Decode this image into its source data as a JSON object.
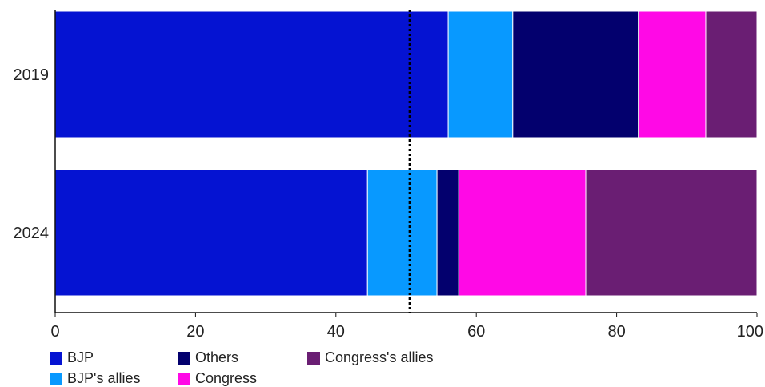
{
  "chart_data": {
    "type": "bar",
    "orientation": "horizontal",
    "stacked": true,
    "categories": [
      "2019",
      "2024"
    ],
    "series": [
      {
        "name": "BJP",
        "color": "#0513d2",
        "values": [
          56.0,
          44.5
        ]
      },
      {
        "name": "BJP's allies",
        "color": "#0899ff",
        "values": [
          9.2,
          9.9
        ]
      },
      {
        "name": "Others",
        "color": "#03006e",
        "values": [
          17.9,
          3.1
        ]
      },
      {
        "name": "Congress",
        "color": "#ff09e6",
        "values": [
          9.6,
          18.1
        ]
      },
      {
        "name": "Congress's allies",
        "color": "#6a1e73",
        "values": [
          7.3,
          24.4
        ]
      }
    ],
    "xlim": [
      0,
      100
    ],
    "xticks": [
      0,
      20,
      40,
      60,
      80,
      100
    ],
    "reference_line": {
      "value": 50.5,
      "style": "dotted"
    },
    "xlabel": "",
    "ylabel": "",
    "title": "",
    "grid": false,
    "legend_position": "bottom-left"
  }
}
